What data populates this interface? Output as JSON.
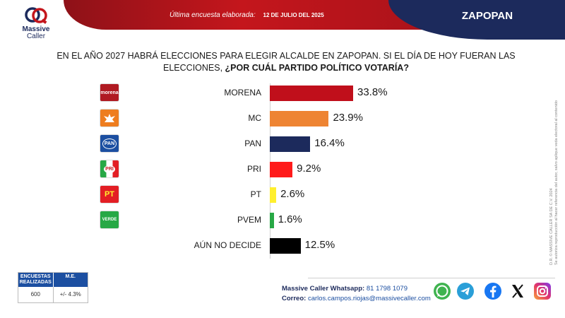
{
  "header": {
    "date_label": "Última encuesta elaborada:",
    "date_value": "12 DE JULIO DEL 2025",
    "city": "ZAPOPAN"
  },
  "logo": {
    "line1": "Massive",
    "line2": "Caller"
  },
  "question": {
    "part1": "EN EL AÑO 2027 HABRÁ ELECCIONES PARA ELEGIR ALCALDE EN ZAPOPAN. SI EL DÍA DE HOY FUERAN LAS ELECCIONES, ",
    "part2": "¿POR CUÁL PARTIDO POLÍTICO VOTARÍA?"
  },
  "chart_data": {
    "type": "bar",
    "orientation": "horizontal",
    "title": "EN EL AÑO 2027 HABRÁ ELECCIONES PARA ELEGIR ALCALDE EN ZAPOPAN. SI EL DÍA DE HOY FUERAN LAS ELECCIONES, ¿POR CUÁL PARTIDO POLÍTICO VOTARÍA?",
    "categories": [
      "MORENA",
      "MC",
      "PAN",
      "PRI",
      "PT",
      "PVEM",
      "AÚN NO DECIDE"
    ],
    "values": [
      33.8,
      23.9,
      16.4,
      9.2,
      2.6,
      1.6,
      12.5
    ],
    "value_labels": [
      "33.8%",
      "23.9%",
      "16.4%",
      "9.2%",
      "2.6%",
      "1.6%",
      "12.5%"
    ],
    "colors": [
      "#c00f1b",
      "#ee8433",
      "#1c2a5c",
      "#ff1a1a",
      "#ffef2e",
      "#27a845",
      "#000000"
    ],
    "party_logos": [
      "morena",
      "mc",
      "pan",
      "pri",
      "pt",
      "verde",
      ""
    ],
    "logo_text": [
      "morena",
      "",
      "PAN",
      "PRI",
      "PT",
      "VERDE",
      ""
    ],
    "xlim": [
      0,
      35
    ],
    "grid": false,
    "legend": "none"
  },
  "side_note": {
    "line1": "D.R. © MASSIVE CALLER SA DE C.V. 2024",
    "line2": "Se autoriza reproducción al hacer referencia del autor, salvo aplique veda electoral al contenido"
  },
  "stats": {
    "col1_head": "ENCUESTAS REALIZADAS",
    "col2_head": "M.E.",
    "col1_value": "600",
    "col2_value": "+/- 4.3%"
  },
  "contact": {
    "whatsapp_label": "Massive Caller Whatsapp:",
    "whatsapp_value": "81 1798 1079",
    "email_label": "Correo:",
    "email_value": "carlos.campos.riojas@massivecaller.com"
  },
  "colors": {
    "brand_red": "#c4161c",
    "brand_navy": "#1c2a5c",
    "brand_blue": "#1c4fa1"
  }
}
